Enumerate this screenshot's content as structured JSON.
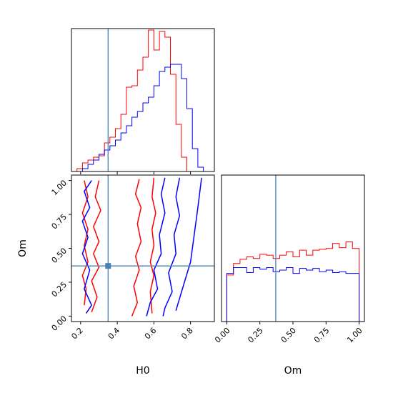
{
  "colors": {
    "series_a": "#ff0000",
    "series_b": "#0000ff",
    "truth": "#4682b4",
    "axes": "#000000"
  },
  "chart_data": [
    {
      "type": "histogram",
      "parameter": "H0",
      "xlim": [
        0.15,
        0.93
      ],
      "truth": 0.35,
      "bin_edges": [
        0.18,
        0.21,
        0.24,
        0.27,
        0.3,
        0.33,
        0.36,
        0.39,
        0.42,
        0.45,
        0.48,
        0.51,
        0.54,
        0.57,
        0.6,
        0.63,
        0.66,
        0.69,
        0.72,
        0.75,
        0.78,
        0.81,
        0.84,
        0.87,
        0.9
      ],
      "series": [
        {
          "color": "#ff0000",
          "counts": [
            2,
            6,
            8,
            10,
            11,
            20,
            24,
            30,
            40,
            59,
            60,
            71,
            80,
            99,
            85,
            98,
            94,
            68,
            33,
            10,
            0,
            0,
            0,
            0
          ]
        },
        {
          "color": "#0000ff",
          "counts": [
            0,
            2,
            5,
            8,
            12,
            15,
            18,
            22,
            27,
            32,
            38,
            42,
            48,
            52,
            60,
            70,
            73,
            75,
            75,
            65,
            44,
            16,
            3,
            0
          ]
        }
      ]
    },
    {
      "type": "histogram",
      "parameter": "Om",
      "xlim": [
        -0.04,
        1.04
      ],
      "truth": 0.37,
      "xticks": [
        "0.00",
        "0.25",
        "0.50",
        "0.75",
        "1.00"
      ],
      "xlabel": "Om",
      "bin_edges": [
        0.0,
        0.05,
        0.1,
        0.15,
        0.2,
        0.25,
        0.3,
        0.35,
        0.4,
        0.45,
        0.5,
        0.55,
        0.6,
        0.65,
        0.7,
        0.75,
        0.8,
        0.85,
        0.9,
        0.95,
        1.0
      ],
      "series": [
        {
          "color": "#ff0000",
          "counts": [
            56,
            70,
            75,
            78,
            76,
            81,
            80,
            76,
            80,
            84,
            78,
            86,
            80,
            86,
            87,
            88,
            94,
            89,
            96,
            88
          ]
        },
        {
          "color": "#0000ff",
          "counts": [
            58,
            65,
            65,
            59,
            65,
            63,
            65,
            60,
            62,
            65,
            58,
            64,
            62,
            64,
            60,
            62,
            59,
            60,
            58,
            58
          ]
        }
      ]
    },
    {
      "type": "contour",
      "x_parameter": "H0",
      "y_parameter": "Om",
      "xlim": [
        0.15,
        0.93
      ],
      "ylim": [
        -0.04,
        1.04
      ],
      "truth": {
        "x": 0.35,
        "y": 0.37
      },
      "xticks": [
        "0.2",
        "0.4",
        "0.6",
        "0.8"
      ],
      "yticks": [
        "0.00",
        "0.25",
        "0.50",
        "0.75",
        "1.00"
      ],
      "xlabel": "H0",
      "ylabel": "Om",
      "series": [
        {
          "color": "#ff0000",
          "levels": [
            [
              [
                0.6,
                1.02
              ],
              [
                0.59,
                0.88
              ],
              [
                0.61,
                0.76
              ],
              [
                0.59,
                0.64
              ],
              [
                0.6,
                0.52
              ],
              [
                0.58,
                0.4
              ],
              [
                0.6,
                0.3
              ],
              [
                0.58,
                0.18
              ],
              [
                0.59,
                0.02
              ]
            ],
            [
              [
                0.52,
                1.01
              ],
              [
                0.5,
                0.9
              ],
              [
                0.53,
                0.8
              ],
              [
                0.51,
                0.68
              ],
              [
                0.53,
                0.55
              ],
              [
                0.5,
                0.44
              ],
              [
                0.52,
                0.34
              ],
              [
                0.49,
                0.22
              ],
              [
                0.51,
                0.1
              ],
              [
                0.48,
                0.0
              ]
            ],
            [
              [
                0.3,
                1.0
              ],
              [
                0.28,
                0.88
              ],
              [
                0.31,
                0.78
              ],
              [
                0.27,
                0.66
              ],
              [
                0.3,
                0.55
              ],
              [
                0.27,
                0.46
              ],
              [
                0.3,
                0.36
              ],
              [
                0.26,
                0.26
              ],
              [
                0.29,
                0.14
              ],
              [
                0.26,
                0.03
              ]
            ],
            [
              [
                0.22,
                1.0
              ],
              [
                0.24,
                0.88
              ],
              [
                0.21,
                0.76
              ],
              [
                0.24,
                0.64
              ],
              [
                0.22,
                0.52
              ],
              [
                0.24,
                0.4
              ],
              [
                0.21,
                0.3
              ],
              [
                0.23,
                0.2
              ],
              [
                0.22,
                0.08
              ]
            ]
          ]
        },
        {
          "color": "#0000ff",
          "levels": [
            [
              [
                0.66,
                1.02
              ],
              [
                0.64,
                0.9
              ],
              [
                0.66,
                0.76
              ],
              [
                0.63,
                0.6
              ],
              [
                0.64,
                0.46
              ],
              [
                0.6,
                0.34
              ],
              [
                0.62,
                0.2
              ],
              [
                0.58,
                0.1
              ],
              [
                0.56,
                0.0
              ]
            ],
            [
              [
                0.74,
                1.02
              ],
              [
                0.72,
                0.88
              ],
              [
                0.74,
                0.74
              ],
              [
                0.71,
                0.6
              ],
              [
                0.72,
                0.46
              ],
              [
                0.68,
                0.32
              ],
              [
                0.7,
                0.18
              ],
              [
                0.66,
                0.06
              ],
              [
                0.65,
                0.0
              ]
            ],
            [
              [
                0.26,
                1.0
              ],
              [
                0.22,
                0.92
              ],
              [
                0.25,
                0.8
              ],
              [
                0.21,
                0.7
              ],
              [
                0.24,
                0.58
              ],
              [
                0.21,
                0.46
              ],
              [
                0.25,
                0.34
              ],
              [
                0.22,
                0.2
              ],
              [
                0.26,
                0.08
              ],
              [
                0.23,
                0.02
              ]
            ],
            [
              [
                0.86,
                1.02
              ],
              [
                0.84,
                0.8
              ],
              [
                0.82,
                0.6
              ],
              [
                0.8,
                0.4
              ],
              [
                0.76,
                0.22
              ],
              [
                0.72,
                0.04
              ]
            ]
          ]
        }
      ]
    }
  ]
}
